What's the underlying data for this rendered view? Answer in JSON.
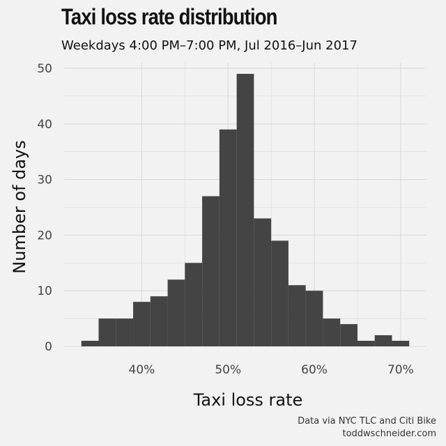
{
  "chart_data": {
    "type": "bar",
    "title": "Taxi loss rate distribution",
    "subtitle": "Weekdays 4:00 PM–7:00 PM, Jul 2016–Jun 2017",
    "xlabel": "Taxi loss rate",
    "ylabel": "Number of days",
    "bin_width_percent": 2,
    "bins_start_percent": [
      33,
      35,
      37,
      39,
      41,
      43,
      45,
      47,
      49,
      51,
      53,
      55,
      57,
      59,
      61,
      63,
      65,
      67,
      69
    ],
    "values": [
      1,
      5,
      5,
      8,
      9,
      12,
      15,
      27,
      39,
      49,
      23,
      19,
      11,
      10,
      5,
      4,
      1,
      2,
      1
    ],
    "xlim": [
      31,
      73
    ],
    "ylim": [
      0,
      51
    ],
    "x_ticks": [
      40,
      50,
      60,
      70
    ],
    "x_tick_labels": [
      "40%",
      "50%",
      "60%",
      "70%"
    ],
    "y_ticks": [
      0,
      10,
      20,
      30,
      40,
      50
    ],
    "y_tick_labels": [
      "0",
      "10",
      "20",
      "30",
      "40",
      "50"
    ],
    "grid": true,
    "bar_color": "#444444",
    "background_color": "#f2f2f2",
    "grid_color": "#d9d9d9"
  },
  "caption": {
    "line1": "Data via NYC TLC and Citi Bike",
    "line2": "toddwschneider.com"
  }
}
